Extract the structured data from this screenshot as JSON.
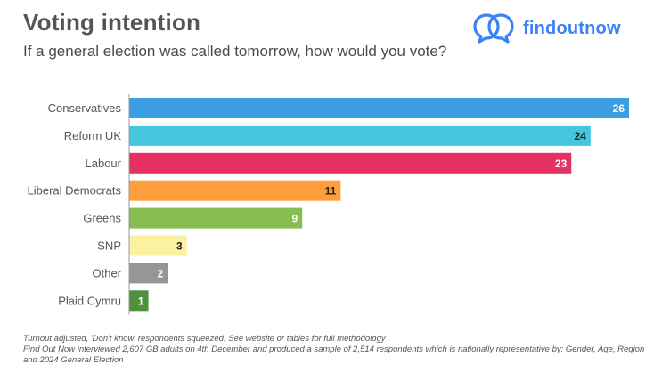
{
  "title": "Voting intention",
  "subtitle": "If a general election was called tomorrow, how would you vote?",
  "brand": {
    "name": "findoutnow",
    "color": "#3b82f6",
    "logo_icon": "two-overlapping-speech-bubbles-icon"
  },
  "chart_data": {
    "type": "bar",
    "orientation": "horizontal",
    "categories": [
      "Conservatives",
      "Reform UK",
      "Labour",
      "Liberal Democrats",
      "Greens",
      "SNP",
      "Other",
      "Plaid Cymru"
    ],
    "values": [
      26,
      24,
      23,
      11,
      9,
      3,
      2,
      1
    ],
    "colors": [
      "#3a9ee0",
      "#45c6dc",
      "#e63262",
      "#ff9e3d",
      "#86be52",
      "#fbf2a1",
      "#969696",
      "#4f8f3e"
    ],
    "label_colors": [
      "#ffffff",
      "#222222",
      "#ffffff",
      "#222222",
      "#ffffff",
      "#222222",
      "#ffffff",
      "#ffffff"
    ],
    "xlim": [
      0,
      26
    ],
    "axis_line": true,
    "grid": false,
    "data_labels": true
  },
  "footnotes": [
    "Turnout adjusted, 'Don't know' respondents squeezed. See website or tables for full methodology",
    "Find Out Now interviewed 2,607 GB adults on 4th December and produced a sample of 2,514 respondents which is nationally representative by: Gender, Age, Region and 2024 General Election"
  ]
}
